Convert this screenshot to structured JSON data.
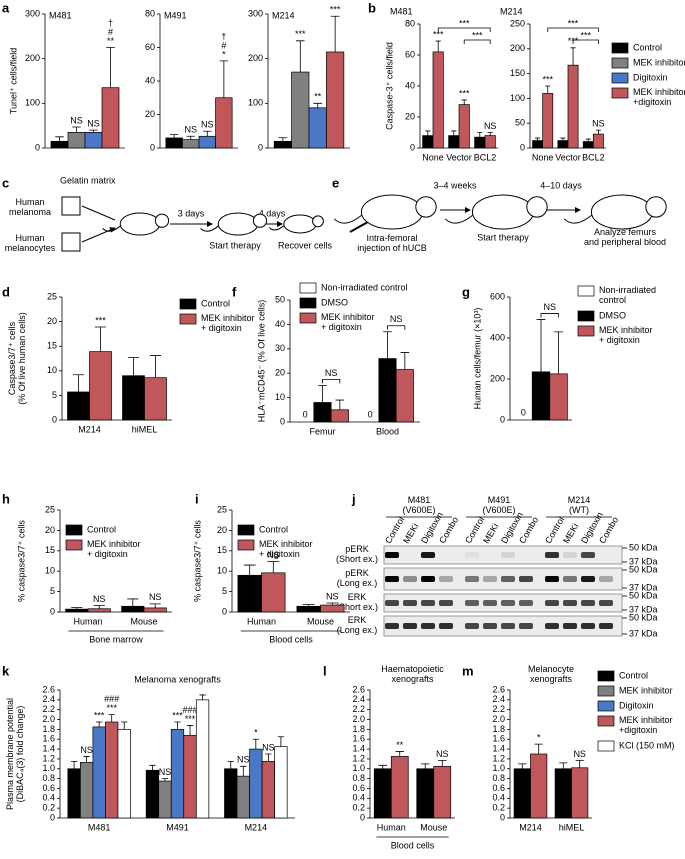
{
  "panel_labels": [
    "a",
    "b",
    "c",
    "d",
    "e",
    "f",
    "g",
    "h",
    "i",
    "j",
    "k",
    "l",
    "m"
  ],
  "legends": [
    {
      "entries": [
        {
          "name": "Control",
          "color": "#000000"
        },
        {
          "name": "MEK inhibitor",
          "color": "#808080"
        },
        {
          "name": "Digitoxin",
          "color": "#4a78c8"
        },
        {
          "name": "MEK inhibitor\n+digitoxin",
          "color": "#c0575a"
        }
      ]
    },
    {
      "entries": [
        {
          "name": "Control",
          "color": "#000000"
        },
        {
          "name": "MEK inhibitor",
          "color": "#808080"
        },
        {
          "name": "Digitoxin",
          "color": "#4a78c8"
        },
        {
          "name": "MEK inhibitor\n+digitoxin",
          "color": "#c0575a"
        },
        {
          "name": "KCl (150 mM)",
          "color": "#ffffff"
        }
      ]
    }
  ],
  "panel_c": {
    "gelatin": "Gelatin matrix",
    "source1": "Human\nmelanoma",
    "source2": "Human\nmelanocytes",
    "step1": "3 days",
    "step2": "4 days",
    "stage1": "Start therapy",
    "stage2": "Recover cells"
  },
  "panel_e": {
    "injection": "Intra-femoral\ninjection of hUCB",
    "step1": "3–4 weeks",
    "step2": "4–10 days",
    "stage1": "Start therapy",
    "stage2": "Analyze femurs\nand peripheral blood"
  },
  "panel_j": {
    "groups": [
      "M481\n(V600E)",
      "M491\n(V600E)",
      "M214\n(WT)"
    ],
    "lanes": [
      "Control",
      "MEKi",
      "Digitoxin",
      "Combo"
    ],
    "rows": [
      "pERK\n(Short ex.)",
      "pERK\n(Long ex.)",
      "ERK\n(Short ex.)",
      "ERK\n(Long ex.)"
    ],
    "markers": [
      "50 kDa",
      "37 kDa"
    ]
  },
  "chart_data": [
    {
      "type": "bar",
      "title": "M481",
      "ylabel": "Tunel⁺ cells/field",
      "categories": [
        null
      ],
      "ylim": [
        0,
        300
      ],
      "yticks": [
        0,
        100,
        200,
        300
      ],
      "series": [
        {
          "color": "#000000",
          "values": [
            15
          ],
          "errors": [
            10
          ]
        },
        {
          "color": "#808080",
          "values": [
            35
          ],
          "errors": [
            12
          ],
          "annotations": [
            "NS"
          ]
        },
        {
          "color": "#4a78c8",
          "values": [
            35
          ],
          "errors": [
            5
          ],
          "annotations": [
            "NS"
          ]
        },
        {
          "color": "#c0575a",
          "values": [
            135
          ],
          "errors": [
            90
          ],
          "annotations": [
            [
              "†",
              "#",
              "**"
            ]
          ]
        }
      ]
    },
    {
      "type": "bar",
      "title": "M491",
      "categories": [
        null
      ],
      "ylim": [
        0,
        80
      ],
      "yticks": [
        0,
        20,
        40,
        60,
        80
      ],
      "series": [
        {
          "color": "#000000",
          "values": [
            6
          ],
          "errors": [
            2
          ]
        },
        {
          "color": "#808080",
          "values": [
            5
          ],
          "errors": [
            2
          ],
          "annotations": [
            "NS"
          ]
        },
        {
          "color": "#4a78c8",
          "values": [
            7
          ],
          "errors": [
            3
          ],
          "annotations": [
            "NS"
          ]
        },
        {
          "color": "#c0575a",
          "values": [
            30
          ],
          "errors": [
            22
          ],
          "annotations": [
            [
              "†",
              "#",
              "*"
            ]
          ]
        }
      ]
    },
    {
      "type": "bar",
      "title": "M214",
      "categories": [
        null
      ],
      "ylim": [
        0,
        300
      ],
      "yticks": [
        0,
        100,
        200,
        300
      ],
      "series": [
        {
          "color": "#000000",
          "values": [
            15
          ],
          "errors": [
            8
          ]
        },
        {
          "color": "#808080",
          "values": [
            170
          ],
          "errors": [
            70
          ],
          "annotations": [
            "***"
          ]
        },
        {
          "color": "#4a78c8",
          "values": [
            90
          ],
          "errors": [
            10
          ],
          "annotations": [
            "**"
          ]
        },
        {
          "color": "#c0575a",
          "values": [
            215
          ],
          "errors": [
            80
          ],
          "annotations": [
            "***"
          ]
        }
      ]
    },
    {
      "type": "bar",
      "title": "M481",
      "ylabel": "Caspase-3⁺ cells/field",
      "categories": [
        "None",
        "Vector",
        "BCL2"
      ],
      "ylim": [
        0,
        80
      ],
      "yticks": [
        0,
        20,
        40,
        60,
        80
      ],
      "brackets": [
        {
          "between": [
            "None",
            "BCL2"
          ],
          "label": "***"
        },
        {
          "between": [
            "Vector",
            "BCL2"
          ],
          "label": "***"
        }
      ],
      "series": [
        {
          "color": "#000000",
          "values": [
            8,
            8,
            7
          ],
          "errors": [
            3,
            3,
            3
          ]
        },
        {
          "color": "#c0575a",
          "values": [
            62,
            28,
            8
          ],
          "errors": [
            7,
            3,
            2
          ],
          "annotations": [
            "***",
            "***",
            "NS"
          ]
        }
      ]
    },
    {
      "type": "bar",
      "title": "M214",
      "categories": [
        "None",
        "Vector",
        "BCL2"
      ],
      "ylim": [
        0,
        250
      ],
      "yticks": [
        0,
        50,
        100,
        150,
        200,
        250
      ],
      "brackets": [
        {
          "between": [
            "None",
            "BCL2"
          ],
          "label": "***"
        },
        {
          "between": [
            "Vector",
            "BCL2"
          ],
          "label": "***"
        }
      ],
      "series": [
        {
          "color": "#000000",
          "values": [
            15,
            15,
            13
          ],
          "errors": [
            5,
            5,
            5
          ]
        },
        {
          "color": "#c0575a",
          "values": [
            110,
            167,
            28
          ],
          "errors": [
            15,
            35,
            8
          ],
          "annotations": [
            "***",
            "***",
            "NS"
          ]
        }
      ]
    },
    {
      "type": "bar",
      "ylabel": "Caspase3/7⁺ cells\n(% Of live human cells)",
      "categories": [
        "M214",
        "hiMEL"
      ],
      "ylim": [
        0,
        25
      ],
      "yticks": [
        0,
        5,
        10,
        15,
        20,
        25
      ],
      "legend": true,
      "series": [
        {
          "name": "Control",
          "color": "#000000",
          "values": [
            5.7,
            9
          ],
          "errors": [
            3.5,
            3.7
          ]
        },
        {
          "name": "MEK inhibitor\n+ digitoxin",
          "color": "#c0575a",
          "values": [
            13.9,
            8.6
          ],
          "errors": [
            5,
            4.5
          ],
          "annotations": [
            "***",
            null
          ]
        }
      ]
    },
    {
      "type": "bar",
      "ylabel": "HLA⁻mCD45⁻ (% Of live cells)",
      "categories": [
        "Femur",
        "Blood"
      ],
      "ylim": [
        0,
        50
      ],
      "yticks": [
        0,
        10,
        20,
        30,
        40,
        50
      ],
      "legend": true,
      "pair_labels": [
        "NS",
        "NS"
      ],
      "series": [
        {
          "name": "Non-irradiated control",
          "color": "#ffffff",
          "values": [
            0,
            0
          ],
          "value_labels": [
            "0",
            "0"
          ]
        },
        {
          "name": "DMSO",
          "color": "#000000",
          "values": [
            8,
            26
          ],
          "errors": [
            7,
            11
          ]
        },
        {
          "name": "MEK inhibitor\n+ digitoxin",
          "color": "#c0575a",
          "values": [
            5,
            21.5
          ],
          "errors": [
            4,
            7
          ]
        }
      ]
    },
    {
      "type": "bar",
      "ylabel": "Human cells/femur (×10³)",
      "categories": [
        null
      ],
      "ylim": [
        0,
        600
      ],
      "yticks": [
        0,
        200,
        400,
        600
      ],
      "legend": true,
      "pair_labels": [
        "NS"
      ],
      "series": [
        {
          "name": "Non-irradiated\ncontrol",
          "color": "#ffffff",
          "values": [
            0
          ],
          "value_labels": [
            "0"
          ]
        },
        {
          "name": "DMSO",
          "color": "#000000",
          "values": [
            235
          ],
          "errors": [
            255
          ]
        },
        {
          "name": "MEK inhibitor\n+ digitoxin",
          "color": "#c0575a",
          "values": [
            225
          ],
          "errors": [
            205
          ]
        }
      ]
    },
    {
      "type": "bar",
      "ylabel": "% caspase3/7⁺ cells",
      "categories": [
        "Human",
        "Mouse"
      ],
      "group_label": "Bone marrow",
      "ylim": [
        0,
        25
      ],
      "yticks": [
        0,
        5,
        10,
        15,
        20,
        25
      ],
      "legend": true,
      "series": [
        {
          "name": "Control",
          "color": "#000000",
          "values": [
            0.7,
            1.4
          ],
          "errors": [
            0.4,
            1.8
          ]
        },
        {
          "name": "MEK inhibitor\n+ digitoxin",
          "color": "#c0575a",
          "values": [
            0.8,
            1.0
          ],
          "errors": [
            0.8,
            1.0
          ],
          "annotations": [
            "NS",
            "NS"
          ]
        }
      ]
    },
    {
      "type": "bar",
      "ylabel": "% caspase3/7⁺ cells",
      "categories": [
        "Human",
        "Mouse"
      ],
      "group_label": "Blood cells",
      "ylim": [
        0,
        25
      ],
      "yticks": [
        0,
        5,
        10,
        15,
        20,
        25
      ],
      "legend": true,
      "series": [
        {
          "name": "Control",
          "color": "#000000",
          "values": [
            9,
            1.4
          ],
          "errors": [
            2.5,
            0.4
          ]
        },
        {
          "name": "MEK inhibitor\n+ digitoxin",
          "color": "#c0575a",
          "values": [
            9.6,
            1.7
          ],
          "errors": [
            2.8,
            0.5
          ],
          "annotations": [
            "NS",
            "NS"
          ]
        }
      ]
    },
    {
      "type": "bar",
      "title": "Melanoma xenografts",
      "ylabel": "Plasma membrane potential\n(DiBAC₄(3) fold change)",
      "categories": [
        "M481",
        "M491",
        "M214"
      ],
      "ylim": [
        0,
        2.6
      ],
      "yticks": [
        0,
        0.2,
        0.4,
        0.6,
        0.8,
        {
          "value": 1,
          "label": "1.0"
        },
        1.2,
        1.4,
        1.6,
        1.8,
        {
          "value": 2,
          "label": "2.0"
        },
        2.2,
        2.4,
        2.6
      ],
      "series": [
        {
          "color": "#000000",
          "values": [
            1.0,
            0.97,
            1.0
          ],
          "errors": [
            0.15,
            0.1,
            0.15
          ]
        },
        {
          "color": "#808080",
          "values": [
            1.13,
            0.75,
            0.85
          ],
          "errors": [
            0.12,
            0.05,
            0.2
          ],
          "annotations": [
            "NS",
            "NS",
            "NS"
          ]
        },
        {
          "color": "#4a78c8",
          "values": [
            1.85,
            1.8,
            1.4
          ],
          "errors": [
            0.1,
            0.15,
            0.2
          ],
          "annotations": [
            "***",
            "***",
            "*"
          ]
        },
        {
          "color": "#c0575a",
          "values": [
            1.95,
            1.68,
            1.15
          ],
          "errors": [
            0.15,
            0.2,
            0.15
          ],
          "annotations": [
            [
              "###",
              "***"
            ],
            [
              "###",
              "***"
            ],
            "NS"
          ]
        },
        {
          "color": "#ffffff",
          "values": [
            1.8,
            2.4,
            1.45
          ],
          "errors": [
            0.15,
            0.1,
            0.2
          ]
        }
      ]
    },
    {
      "type": "bar",
      "title": "Haematopoietic\nxenografts",
      "categories": [
        "Human",
        "Mouse"
      ],
      "group_label": "Blood cells",
      "ylim": [
        0,
        2.6
      ],
      "yticks": [
        0,
        0.2,
        0.4,
        0.6,
        0.8,
        {
          "value": 1,
          "label": "1.0"
        },
        1.2,
        1.4,
        1.6,
        1.8,
        {
          "value": 2,
          "label": "2.0"
        },
        2.2,
        2.4,
        2.6
      ],
      "series": [
        {
          "color": "#000000",
          "values": [
            1.0,
            1.0
          ],
          "errors": [
            0.07,
            0.1
          ]
        },
        {
          "color": "#c0575a",
          "values": [
            1.25,
            1.05
          ],
          "errors": [
            0.1,
            0.12
          ],
          "annotations": [
            "**",
            "NS"
          ]
        }
      ]
    },
    {
      "type": "bar",
      "title": "Melanocyte\nxenografts",
      "categories": [
        "M214",
        "hiMEL"
      ],
      "ylim": [
        0,
        2.6
      ],
      "yticks": [
        0,
        0.2,
        0.4,
        0.6,
        0.8,
        {
          "value": 1,
          "label": "1.0"
        },
        1.2,
        1.4,
        1.6,
        1.8,
        {
          "value": 2,
          "label": "2.0"
        },
        2.2,
        2.4,
        2.6
      ],
      "series": [
        {
          "color": "#000000",
          "values": [
            1.0,
            1.0
          ],
          "errors": [
            0.1,
            0.12
          ]
        },
        {
          "color": "#c0575a",
          "values": [
            1.3,
            1.02
          ],
          "errors": [
            0.2,
            0.15
          ],
          "annotations": [
            "*",
            "NS"
          ]
        }
      ]
    }
  ]
}
